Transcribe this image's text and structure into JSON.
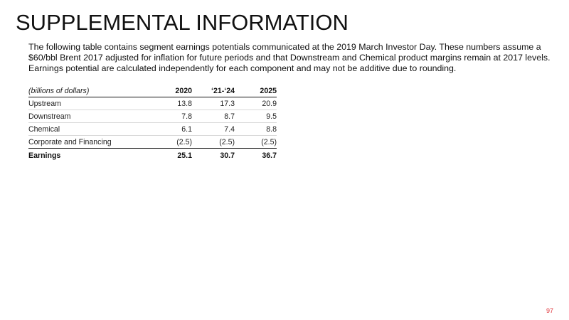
{
  "slide": {
    "title": "SUPPLEMENTAL INFORMATION",
    "intro": "The following table contains segment earnings potentials communicated at the 2019 March Investor Day. These numbers assume a $60/bbl Brent 2017 adjusted for inflation for future periods and that Downstream and Chemical product margins remain at 2017 levels. Earnings potential are calculated independently for each component and may not be additive due to rounding.",
    "page_number": "97"
  },
  "table": {
    "header": {
      "label": "(billions of dollars)",
      "cols": [
        "2020",
        "‘21-‘24",
        "2025"
      ]
    },
    "rows": [
      {
        "label": "Upstream",
        "values": [
          "13.8",
          "17.3",
          "20.9"
        ]
      },
      {
        "label": "Downstream",
        "values": [
          "7.8",
          "8.7",
          "9.5"
        ]
      },
      {
        "label": "Chemical",
        "values": [
          "6.1",
          "7.4",
          "8.8"
        ]
      },
      {
        "label": "Corporate and Financing",
        "values": [
          "(2.5)",
          "(2.5)",
          "(2.5)"
        ]
      }
    ],
    "total": {
      "label": "Earnings",
      "values": [
        "25.1",
        "30.7",
        "36.7"
      ]
    }
  },
  "colors": {
    "page_number": "#e0383e",
    "text": "#111111"
  }
}
